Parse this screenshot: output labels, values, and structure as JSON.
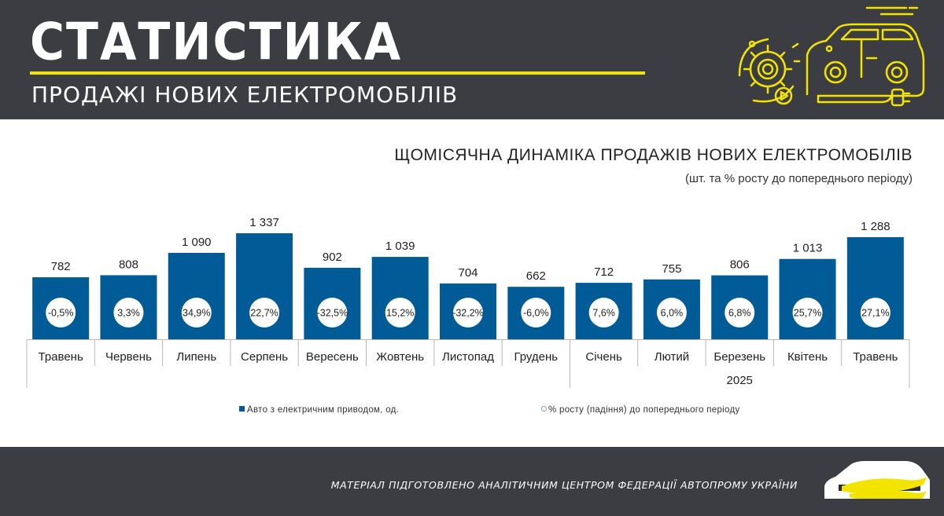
{
  "header": {
    "title": "СТАТИСТИКА",
    "subtitle": "ПРОДАЖІ НОВИХ ЕЛЕКТРОМОБІЛІВ",
    "accent_color": "#f3e400",
    "background_color": "#3b3d42",
    "icon": "electric-car-gear-icon"
  },
  "chart_data": {
    "type": "bar",
    "title": "ЩОМІСЯЧНА ДИНАМІКА ПРОДАЖІВ НОВИХ ЕЛЕКТРОМОБІЛІВ",
    "subtitle": "(шт. та % росту до попереднього періоду)",
    "categories": [
      "Травень",
      "Червень",
      "Липень",
      "Серпень",
      "Вересень",
      "Жовтень",
      "Листопад",
      "Грудень",
      "Січень",
      "Лютий",
      "Березень",
      "Квітень",
      "Травень"
    ],
    "value_labels": [
      "782",
      "808",
      "1 090",
      "1 337",
      "902",
      "1 039",
      "704",
      "662",
      "712",
      "755",
      "806",
      "1 013",
      "1 288"
    ],
    "growth_labels": [
      "-0,5%",
      "3,3%",
      "34,9%",
      "22,7%",
      "-32,5%",
      "15,2%",
      "-32,2%",
      "-6,0%",
      "7,6%",
      "6,0%",
      "6,8%",
      "25,7%",
      "27,1%"
    ],
    "year_groups": [
      {
        "label": "",
        "start": 0,
        "end": 7
      },
      {
        "label": "2025",
        "start": 8,
        "end": 12
      }
    ],
    "series": [
      {
        "name": "Авто з електричним приводом, од.",
        "values": [
          782,
          808,
          1090,
          1337,
          902,
          1039,
          704,
          662,
          712,
          755,
          806,
          1013,
          1288
        ],
        "color": "#005b96"
      },
      {
        "name": "% росту (падіння) до попереднього періоду",
        "values": [
          -0.5,
          3.3,
          34.9,
          22.7,
          -32.5,
          15.2,
          -32.2,
          -6.0,
          7.6,
          6.0,
          6.8,
          25.7,
          27.1
        ],
        "color": "#ffffff"
      }
    ],
    "ylim": [
      0,
      1337
    ],
    "grid": false,
    "legend_position": "bottom"
  },
  "footer": {
    "text": "МАТЕРІАЛ ПІДГОТОВЛЕНО АНАЛІТИЧНИМ ЦЕНТРОМ ФЕДЕРАЦІЇ АВТОПРОМУ УКРАЇНИ",
    "logo": "car-logo-icon"
  }
}
